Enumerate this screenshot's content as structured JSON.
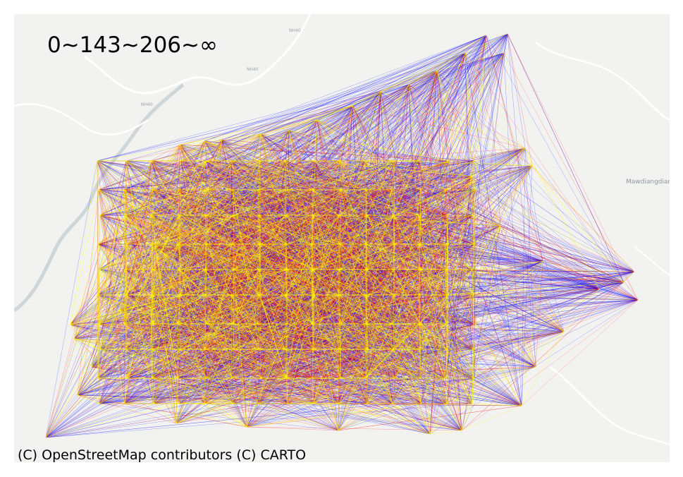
{
  "map": {
    "legend_title": "0~143~206~∞",
    "attribution": "(C) OpenStreetMap contributors (C) CARTO",
    "place_labels": [
      "Mawdiangdiang"
    ],
    "road_labels": [
      "NH40",
      "NH40",
      "NH40"
    ],
    "colors": {
      "background": "#f2f3f1",
      "water": "#d4dadc",
      "roads": "#ffffff",
      "band_low": "#ffff00",
      "band_mid": "#ff0000",
      "band_high": "#0000ff"
    },
    "band_breaks": [
      0,
      143,
      206,
      "∞"
    ]
  }
}
